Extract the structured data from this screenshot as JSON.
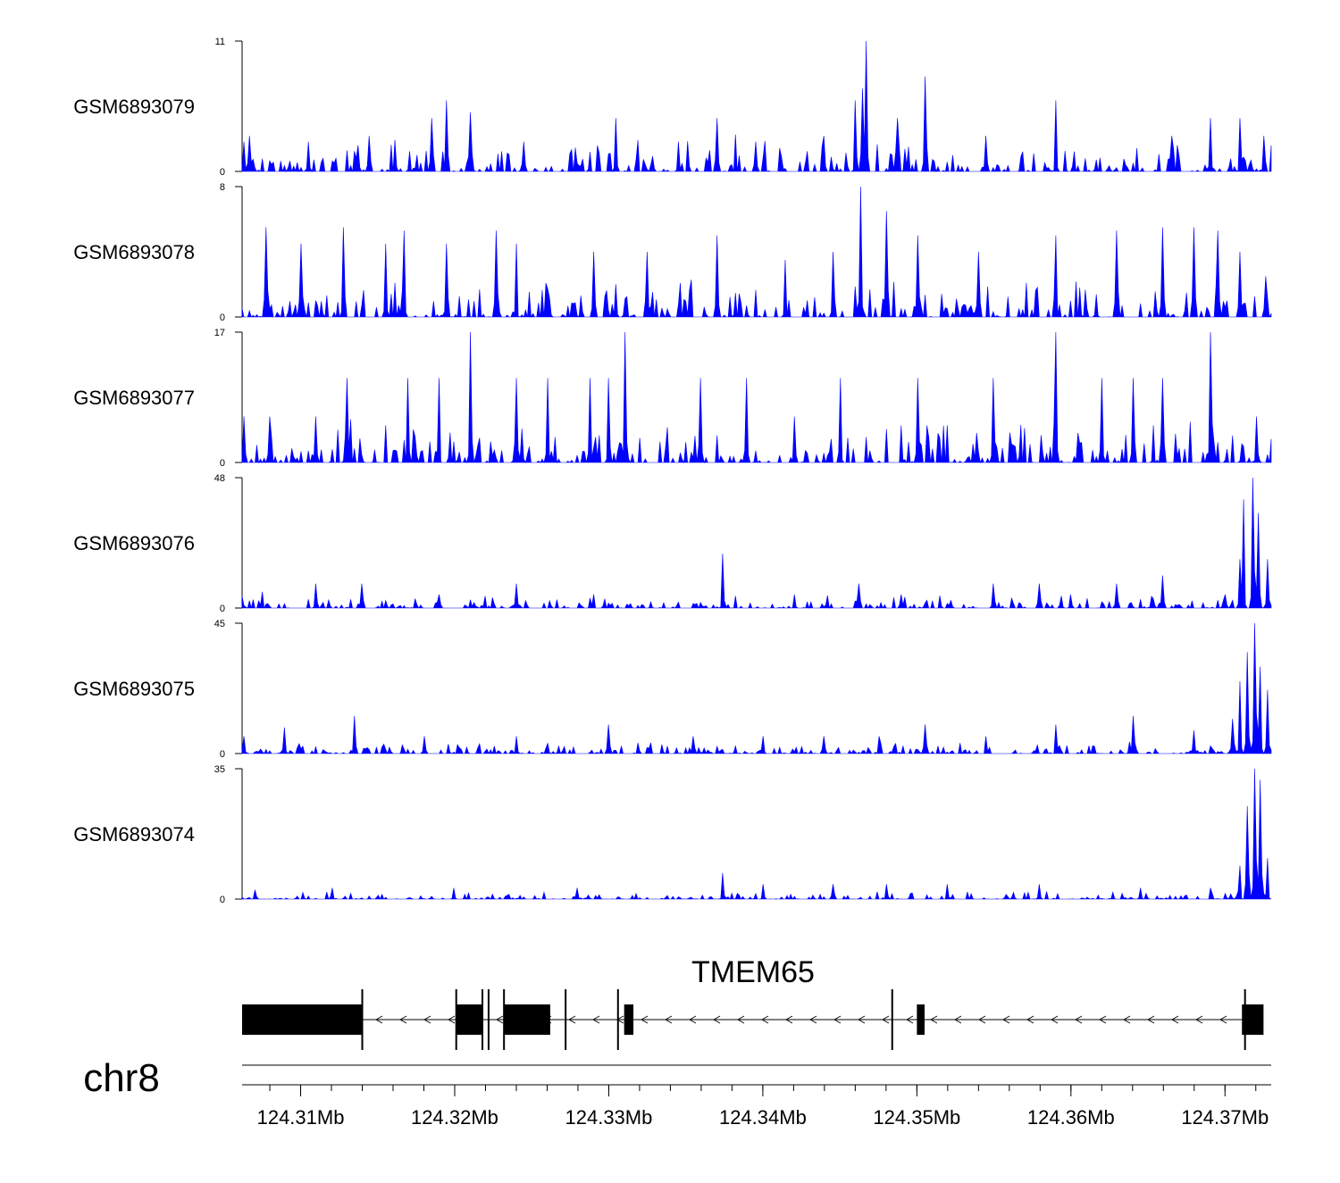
{
  "chart_data": {
    "type": "area",
    "title": "",
    "chromosome": "chr8",
    "xlim": [
      124.3062,
      124.373
    ],
    "x_unit": "Mb",
    "series_color": "#0000ff",
    "tracks": [
      {
        "name": "GSM6893079",
        "ymax": 11,
        "ymin": 0,
        "peaks": [
          [
            124.3063,
            2.5
          ],
          [
            124.3067,
            3
          ],
          [
            124.3105,
            2.5
          ],
          [
            124.3145,
            3
          ],
          [
            124.3185,
            4.5
          ],
          [
            124.3195,
            6
          ],
          [
            124.321,
            5
          ],
          [
            124.3245,
            2.5
          ],
          [
            124.3305,
            4.5
          ],
          [
            124.3345,
            2.5
          ],
          [
            124.337,
            4.5
          ],
          [
            124.3395,
            2.5
          ],
          [
            124.344,
            3
          ],
          [
            124.346,
            6
          ],
          [
            124.3465,
            7
          ],
          [
            124.3467,
            11
          ],
          [
            124.3487,
            4.5
          ],
          [
            124.3505,
            8
          ],
          [
            124.3545,
            3
          ],
          [
            124.359,
            6
          ],
          [
            124.3665,
            3
          ],
          [
            124.369,
            4.5
          ],
          [
            124.371,
            4.5
          ],
          [
            124.3725,
            3
          ]
        ],
        "noise": 3.2,
        "seed": 11
      },
      {
        "name": "GSM6893078",
        "ymax": 8,
        "ymin": 0,
        "peaks": [
          [
            124.3077,
            5.5
          ],
          [
            124.31,
            4.5
          ],
          [
            124.3128,
            5.5
          ],
          [
            124.3155,
            4.5
          ],
          [
            124.3167,
            5.3
          ],
          [
            124.3195,
            4.5
          ],
          [
            124.3227,
            5.3
          ],
          [
            124.324,
            4.5
          ],
          [
            124.329,
            4
          ],
          [
            124.3325,
            4
          ],
          [
            124.337,
            5
          ],
          [
            124.3415,
            3.5
          ],
          [
            124.3445,
            4
          ],
          [
            124.3463,
            8
          ],
          [
            124.348,
            6.5
          ],
          [
            124.35,
            5
          ],
          [
            124.354,
            4
          ],
          [
            124.359,
            5
          ],
          [
            124.363,
            5.3
          ],
          [
            124.366,
            5.5
          ],
          [
            124.368,
            5.5
          ],
          [
            124.3695,
            5.3
          ],
          [
            124.371,
            4
          ],
          [
            124.3727,
            2.5
          ]
        ],
        "noise": 2.6,
        "seed": 23
      },
      {
        "name": "GSM6893077",
        "ymax": 17,
        "ymin": 0,
        "peaks": [
          [
            124.3063,
            6
          ],
          [
            124.308,
            6
          ],
          [
            124.311,
            6
          ],
          [
            124.313,
            11
          ],
          [
            124.317,
            11
          ],
          [
            124.319,
            11
          ],
          [
            124.321,
            17
          ],
          [
            124.324,
            11
          ],
          [
            124.326,
            11
          ],
          [
            124.3288,
            11
          ],
          [
            124.33,
            11
          ],
          [
            124.331,
            17
          ],
          [
            124.336,
            11
          ],
          [
            124.339,
            11
          ],
          [
            124.342,
            6
          ],
          [
            124.345,
            11
          ],
          [
            124.35,
            11
          ],
          [
            124.355,
            11
          ],
          [
            124.359,
            17
          ],
          [
            124.362,
            11
          ],
          [
            124.364,
            11
          ],
          [
            124.366,
            11
          ],
          [
            124.369,
            17
          ],
          [
            124.372,
            6
          ]
        ],
        "noise": 6,
        "seed": 37
      },
      {
        "name": "GSM6893076",
        "ymax": 48,
        "ymin": 0,
        "peaks": [
          [
            124.3075,
            6
          ],
          [
            124.311,
            9
          ],
          [
            124.314,
            9
          ],
          [
            124.319,
            5
          ],
          [
            124.324,
            9
          ],
          [
            124.329,
            5
          ],
          [
            124.3374,
            20
          ],
          [
            124.342,
            5
          ],
          [
            124.3462,
            9
          ],
          [
            124.349,
            5
          ],
          [
            124.355,
            9
          ],
          [
            124.358,
            9
          ],
          [
            124.36,
            5
          ],
          [
            124.363,
            9
          ],
          [
            124.366,
            12
          ],
          [
            124.37,
            5
          ],
          [
            124.371,
            18
          ],
          [
            124.3712,
            40
          ],
          [
            124.3718,
            48
          ],
          [
            124.3722,
            35
          ],
          [
            124.3728,
            18
          ]
        ],
        "noise": 5,
        "seed": 41
      },
      {
        "name": "GSM6893075",
        "ymax": 45,
        "ymin": 0,
        "peaks": [
          [
            124.3063,
            6
          ],
          [
            124.309,
            9
          ],
          [
            124.3135,
            13
          ],
          [
            124.318,
            6
          ],
          [
            124.324,
            6
          ],
          [
            124.33,
            10
          ],
          [
            124.3355,
            6
          ],
          [
            124.34,
            6
          ],
          [
            124.344,
            6
          ],
          [
            124.3475,
            6
          ],
          [
            124.3505,
            10
          ],
          [
            124.3545,
            6
          ],
          [
            124.359,
            10
          ],
          [
            124.364,
            13
          ],
          [
            124.368,
            8
          ],
          [
            124.3705,
            12
          ],
          [
            124.371,
            25
          ],
          [
            124.3715,
            35
          ],
          [
            124.3719,
            45
          ],
          [
            124.3723,
            30
          ],
          [
            124.3728,
            22
          ]
        ],
        "noise": 4.5,
        "seed": 53
      },
      {
        "name": "GSM6893074",
        "ymax": 35,
        "ymin": 0,
        "peaks": [
          [
            124.307,
            2.5
          ],
          [
            124.312,
            3
          ],
          [
            124.32,
            3
          ],
          [
            124.328,
            3
          ],
          [
            124.3374,
            7
          ],
          [
            124.34,
            4
          ],
          [
            124.3445,
            4
          ],
          [
            124.348,
            4
          ],
          [
            124.352,
            4
          ],
          [
            124.358,
            4
          ],
          [
            124.3645,
            3
          ],
          [
            124.369,
            3
          ],
          [
            124.371,
            9
          ],
          [
            124.3715,
            25
          ],
          [
            124.3719,
            35
          ],
          [
            124.3723,
            32
          ],
          [
            124.3728,
            11
          ]
        ],
        "noise": 2.2,
        "seed": 67
      }
    ],
    "gene": {
      "name": "TMEM65",
      "strand": "-",
      "start": 124.3062,
      "end": 124.3725,
      "exons": [
        [
          124.3062,
          124.314
        ],
        [
          124.3201,
          124.3218
        ],
        [
          124.3232,
          124.3262
        ],
        [
          124.331,
          124.3316
        ],
        [
          124.35,
          124.3505
        ],
        [
          124.3711,
          124.3725
        ]
      ],
      "junction_ticks": [
        124.314,
        124.3201,
        124.3218,
        124.3222,
        124.3232,
        124.3272,
        124.3306,
        124.3484,
        124.3713
      ]
    },
    "x_axis": {
      "ticks": [
        124.31,
        124.32,
        124.33,
        124.34,
        124.35,
        124.36,
        124.37
      ],
      "tick_labels": [
        "124.31Mb",
        "124.32Mb",
        "124.33Mb",
        "124.34Mb",
        "124.35Mb",
        "124.36Mb",
        "124.37Mb"
      ],
      "minor_step": 0.002
    }
  }
}
